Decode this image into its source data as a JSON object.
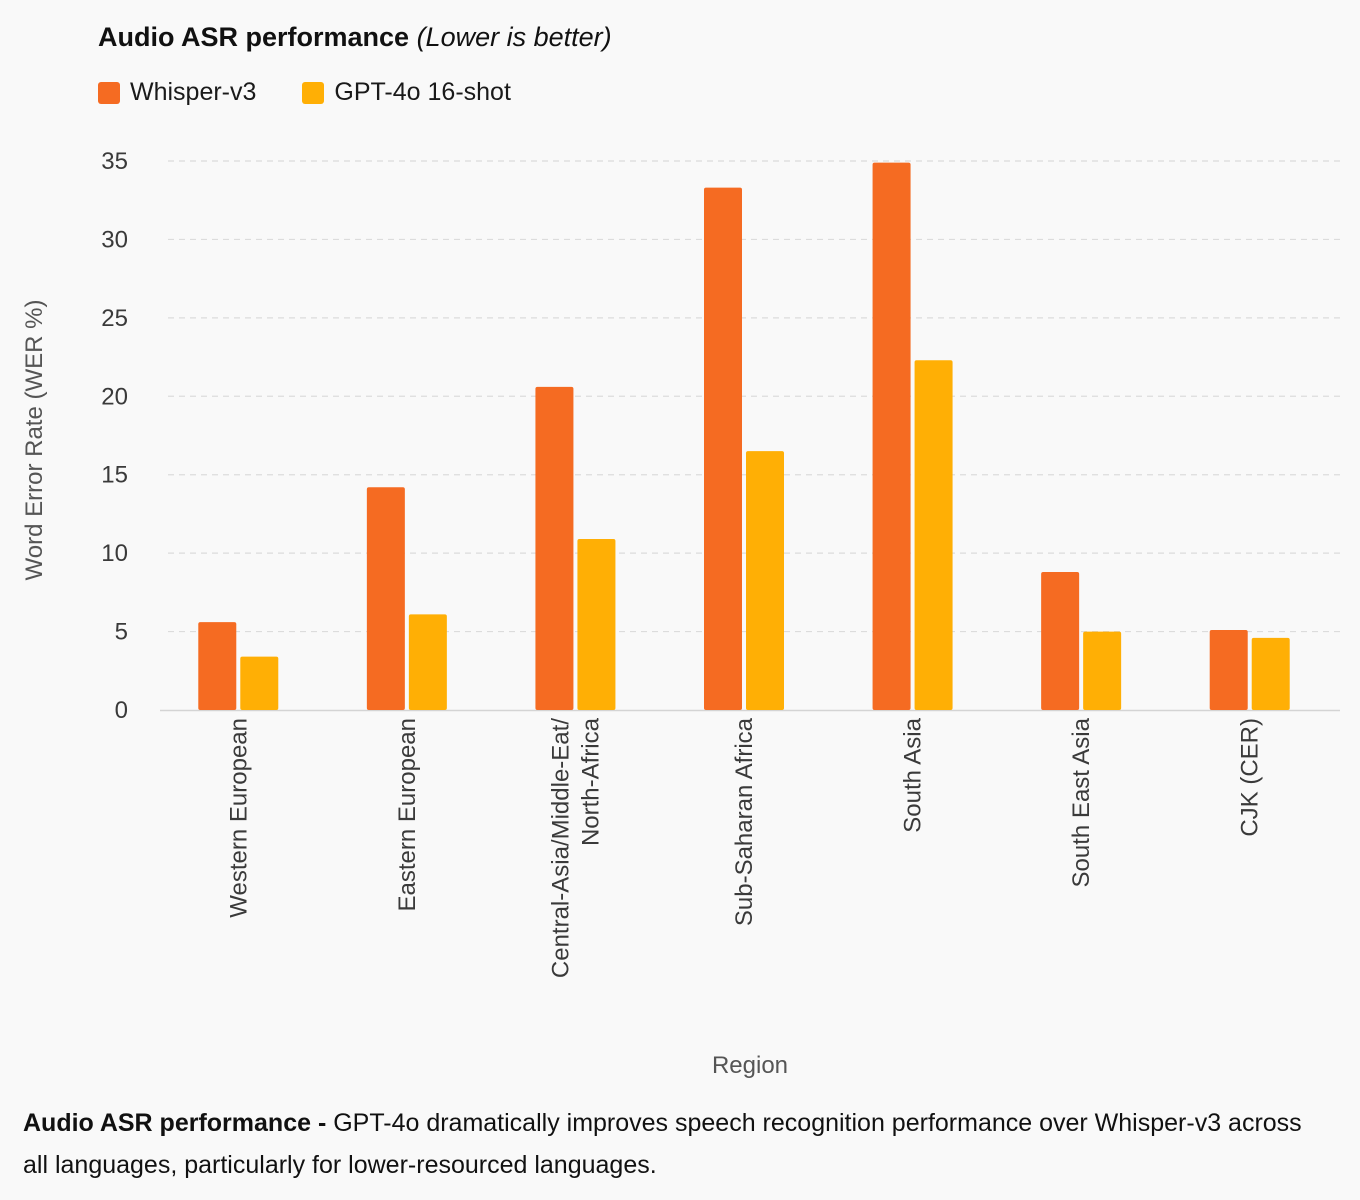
{
  "chart_data": {
    "type": "bar",
    "title": "Audio ASR performance",
    "subtitle": "(Lower is better)",
    "xlabel": "Region",
    "ylabel": "Word Error Rate (WER %)",
    "ylim": [
      0,
      35
    ],
    "yticks": [
      0,
      5,
      10,
      15,
      20,
      25,
      30,
      35
    ],
    "grid": true,
    "legend_position": "top-left",
    "categories": [
      [
        "Western European"
      ],
      [
        "Eastern European"
      ],
      [
        "Central-Asia/Middle-Eat/",
        "North-Africa"
      ],
      [
        "Sub-Saharan Africa"
      ],
      [
        "South Asia"
      ],
      [
        "South East Asia"
      ],
      [
        "CJK (CER)"
      ]
    ],
    "series": [
      {
        "name": "Whisper-v3",
        "color": "#f56b22",
        "values": [
          5.6,
          14.2,
          20.6,
          33.3,
          34.9,
          8.8,
          5.1
        ]
      },
      {
        "name": "GPT-4o 16-shot",
        "color": "#ffaf05",
        "values": [
          3.4,
          6.1,
          10.9,
          16.5,
          22.3,
          5.0,
          4.6
        ]
      }
    ]
  },
  "caption": {
    "bold": "Audio ASR performance -",
    "text": " GPT-4o dramatically improves speech recognition performance over Whisper-v3 across all languages, particularly for lower-resourced languages."
  }
}
